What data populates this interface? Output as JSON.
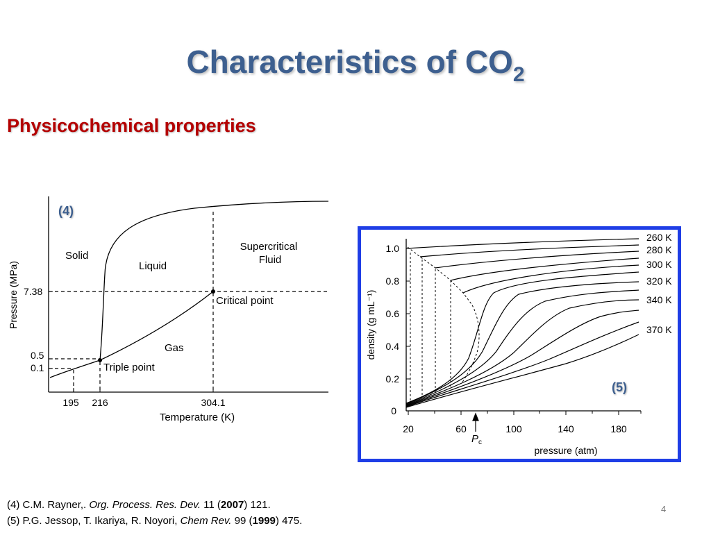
{
  "slide": {
    "title_main": "Characteristics of CO",
    "title_sub": "2",
    "subtitle": "Physicochemical properties",
    "page_number": "4"
  },
  "figure_labels": [
    "(4)",
    "(5)"
  ],
  "references": [
    {
      "num": "(4)",
      "authors": "C.M. Rayner,.",
      "journal": "Org. Process. Res. Dev.",
      "volume": "11",
      "year": "2007",
      "pages": "121."
    },
    {
      "num": "(5)",
      "authors": "P.G. Jessop, T. Ikariya, R. Noyori,",
      "journal": "Chem Rev.",
      "volume": "99",
      "year": "1999",
      "pages": "475."
    }
  ],
  "chart_data": [
    {
      "type": "line",
      "xlabel": "Temperature (K)",
      "ylabel": "Pressure (MPa)",
      "x_ticks": [
        "195",
        "216",
        "304.1"
      ],
      "y_ticks": [
        "7.38",
        "0.5",
        "0.1"
      ],
      "regions": [
        "Solid",
        "Liquid",
        "Supercritical Fluid",
        "Gas"
      ],
      "annotations": [
        "Critical point",
        "Triple point"
      ],
      "points": {
        "triple_point": {
          "T": 216,
          "P": 0.5
        },
        "critical_point": {
          "T": 304.1,
          "P": 7.38
        }
      },
      "grid": false
    },
    {
      "type": "line",
      "xlabel": "pressure (atm)",
      "ylabel": "density (g mL⁻¹)",
      "marker_label": "P",
      "marker_sub": "c",
      "x_ticks": [
        "20",
        "60",
        "100",
        "140",
        "180"
      ],
      "y_ticks": [
        "1.0",
        "0.8",
        "0.6",
        "0.4",
        "0.2",
        "0"
      ],
      "xlim": [
        20,
        200
      ],
      "ylim": [
        0,
        1.05
      ],
      "series_labels": [
        "260 K",
        "280 K",
        "300 K",
        "320 K",
        "340 K",
        "370 K"
      ],
      "grid": false,
      "border_color": "#1f3ee6"
    }
  ]
}
